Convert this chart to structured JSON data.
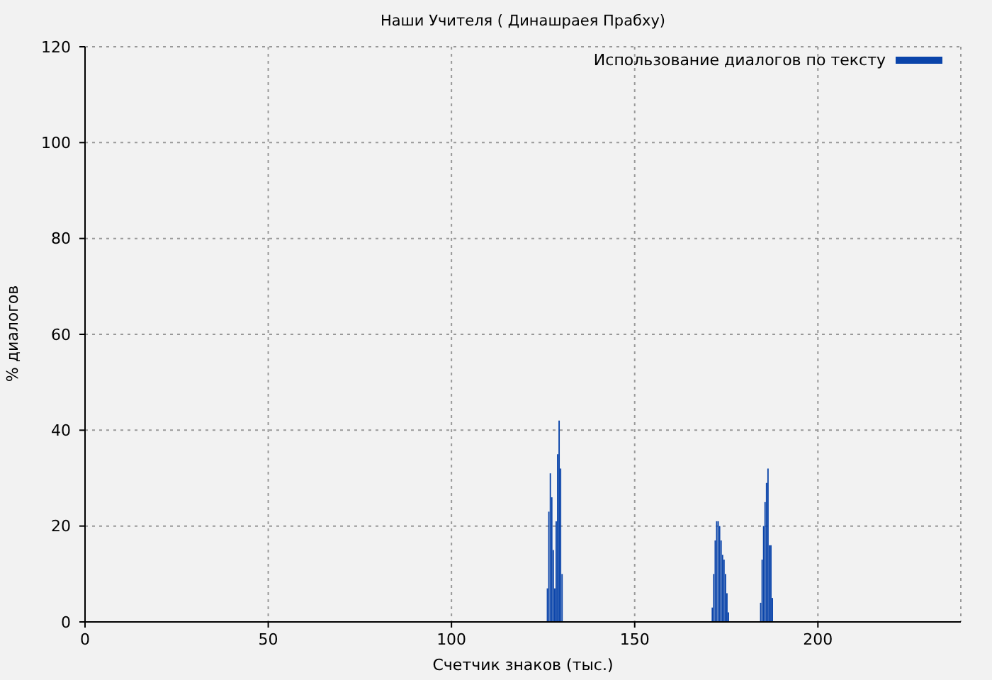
{
  "chart_data": {
    "type": "bar",
    "title": "Наши Учителя ( Динашраея Прабху)",
    "xlabel": "Счетчик знаков (тыс.)",
    "ylabel": "% диалогов",
    "x": [
      126.2,
      126.6,
      127.0,
      127.4,
      127.8,
      128.2,
      128.6,
      129.0,
      129.4,
      129.8,
      130.2,
      171.2,
      171.6,
      172.0,
      172.4,
      172.8,
      173.2,
      173.6,
      174.0,
      174.4,
      174.8,
      175.2,
      175.6,
      184.4,
      184.8,
      185.2,
      185.6,
      186.0,
      186.4,
      186.8,
      187.2,
      187.6
    ],
    "series": [
      {
        "name": "Использование диалогов по тексту",
        "color": "#0a44aa",
        "values": [
          7,
          23,
          31,
          26,
          15,
          7,
          21,
          35,
          42,
          32,
          10,
          3,
          10,
          17,
          21,
          21,
          20,
          17,
          14,
          13,
          10,
          6,
          2,
          4,
          13,
          20,
          25,
          29,
          32,
          16,
          16,
          5
        ]
      }
    ],
    "xlim": [
      0,
      239
    ],
    "xticks": [
      0,
      50,
      100,
      150,
      200
    ],
    "ylim": [
      0,
      120
    ],
    "yticks": [
      0,
      20,
      40,
      60,
      80,
      100,
      120
    ],
    "grid": true,
    "legend": "top right"
  }
}
